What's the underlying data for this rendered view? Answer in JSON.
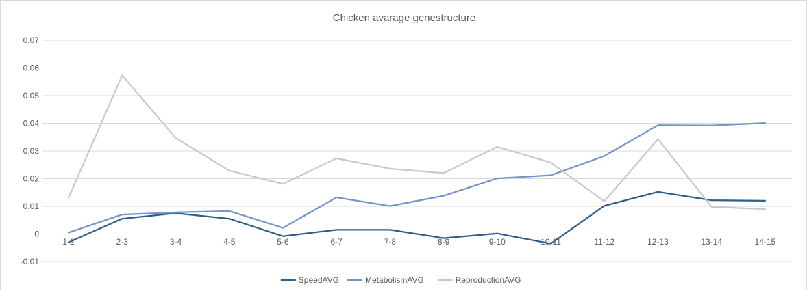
{
  "chart_data": {
    "type": "line",
    "title": "Chicken avarage genestructure",
    "xlabel": "",
    "ylabel": "",
    "categories": [
      "1-2",
      "2-3",
      "3-4",
      "4-5",
      "5-6",
      "6-7",
      "7-8",
      "8-9",
      "9-10",
      "10-11",
      "11-12",
      "12-13",
      "13-14",
      "14-15"
    ],
    "ylim": [
      -0.01,
      0.07
    ],
    "yticks": [
      -0.01,
      0,
      0.01,
      0.02,
      0.03,
      0.04,
      0.05,
      0.06,
      0.07
    ],
    "ytick_labels": [
      "-0.01",
      "0",
      "0.01",
      "0.02",
      "0.03",
      "0.04",
      "0.05",
      "0.06",
      "0.07"
    ],
    "grid": true,
    "legend_position": "bottom",
    "series": [
      {
        "name": "SpeedAVG",
        "color": "#2e5e8c",
        "values": [
          -0.003,
          0.0055,
          0.0075,
          0.0055,
          -0.0008,
          0.0015,
          0.0015,
          -0.0015,
          0.0002,
          -0.0035,
          0.0102,
          0.0152,
          0.0122,
          0.012
        ]
      },
      {
        "name": "MetabolismAVG",
        "color": "#7293cb",
        "values": [
          0.0005,
          0.007,
          0.0078,
          0.0083,
          0.0022,
          0.0132,
          0.0101,
          0.0138,
          0.0201,
          0.0212,
          0.0282,
          0.0393,
          0.0392,
          0.0401
        ]
      },
      {
        "name": "ReproductionAVG",
        "color": "#c9c9c9",
        "values": [
          0.0131,
          0.0573,
          0.0347,
          0.0229,
          0.0181,
          0.0273,
          0.0236,
          0.022,
          0.0315,
          0.0258,
          0.0118,
          0.0343,
          0.0098,
          0.009
        ]
      }
    ]
  }
}
